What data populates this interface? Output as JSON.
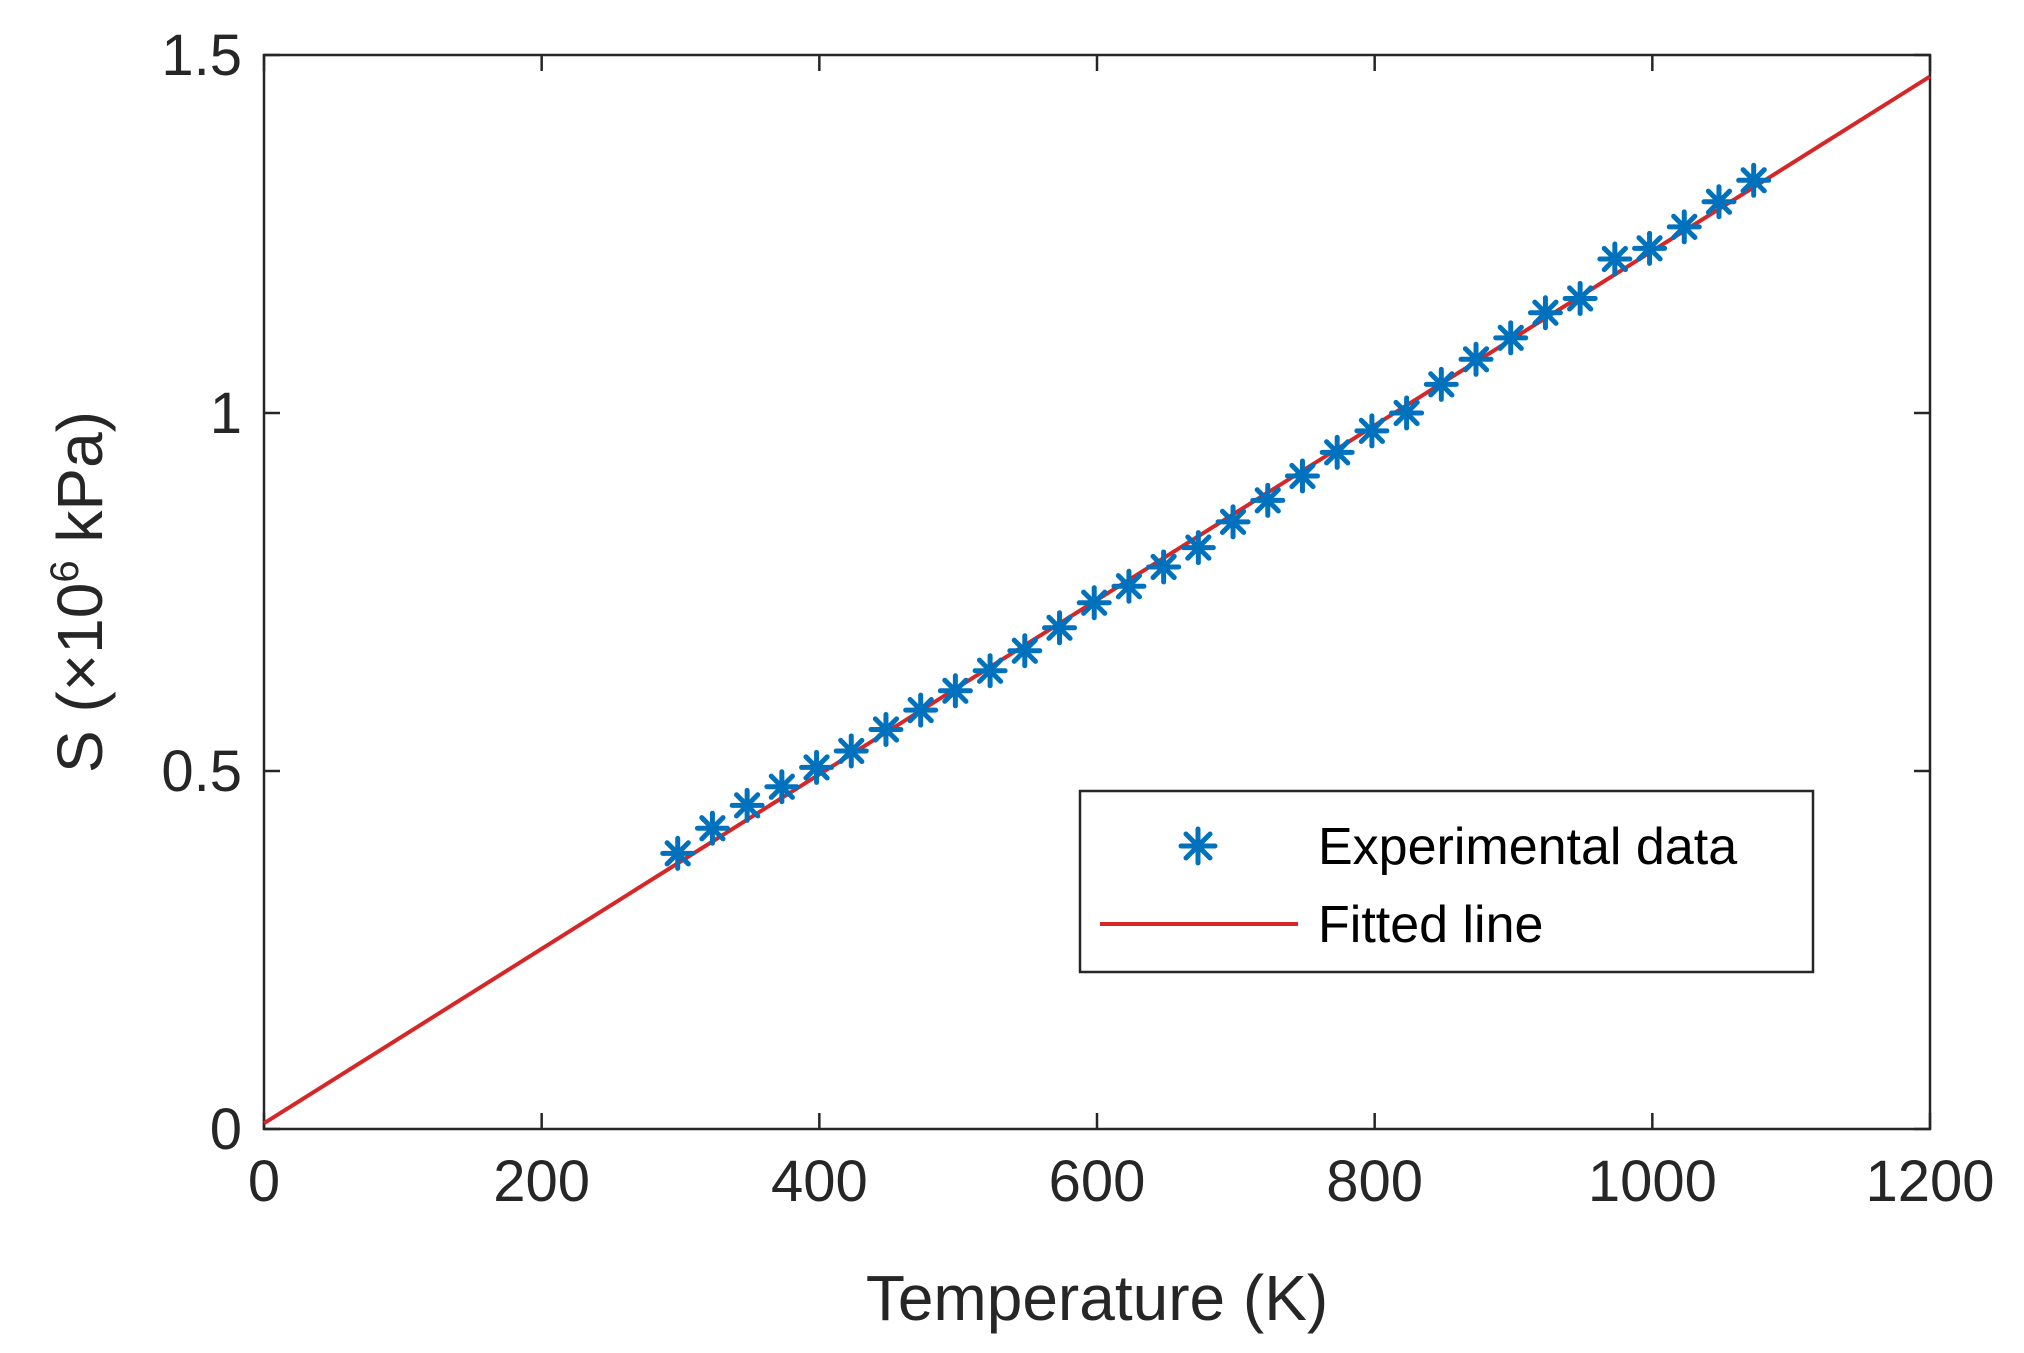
{
  "chart_data": {
    "type": "scatter",
    "title": "",
    "xlabel": "Temperature (K)",
    "ylabel": {
      "prefix": "S (×10",
      "exponent": "6",
      "suffix": " kPa)"
    },
    "xlim": [
      0,
      1200
    ],
    "ylim": [
      0,
      1.5
    ],
    "xticks": [
      0,
      200,
      400,
      600,
      800,
      1000,
      1200
    ],
    "xtick_labels": [
      "0",
      "200",
      "400",
      "600",
      "800",
      "1000",
      "1200"
    ],
    "yticks": [
      0,
      0.5,
      1,
      1.5
    ],
    "ytick_labels": [
      "0",
      "0.5",
      "1",
      "1.5"
    ],
    "grid": false,
    "legend_position": "lower-right",
    "series": [
      {
        "name": "Experimental data",
        "kind": "marker",
        "marker": "asterisk",
        "color": "#0072BD",
        "x": [
          298,
          323,
          348,
          373,
          398,
          423,
          448,
          473,
          498,
          523,
          548,
          573,
          598,
          623,
          648,
          673,
          698,
          723,
          748,
          773,
          798,
          823,
          848,
          873,
          898,
          923,
          948,
          973,
          998,
          1023,
          1048,
          1073
        ],
        "y": [
          0.385,
          0.42,
          0.452,
          0.478,
          0.505,
          0.528,
          0.558,
          0.585,
          0.612,
          0.64,
          0.668,
          0.7,
          0.735,
          0.758,
          0.785,
          0.812,
          0.848,
          0.878,
          0.912,
          0.945,
          0.975,
          1.0,
          1.04,
          1.075,
          1.105,
          1.14,
          1.16,
          1.215,
          1.23,
          1.26,
          1.295,
          1.325
        ]
      },
      {
        "name": "Fitted line",
        "kind": "line",
        "color": "#D62728",
        "x": [
          0,
          1200
        ],
        "y": [
          0.008,
          1.47
        ]
      }
    ]
  }
}
